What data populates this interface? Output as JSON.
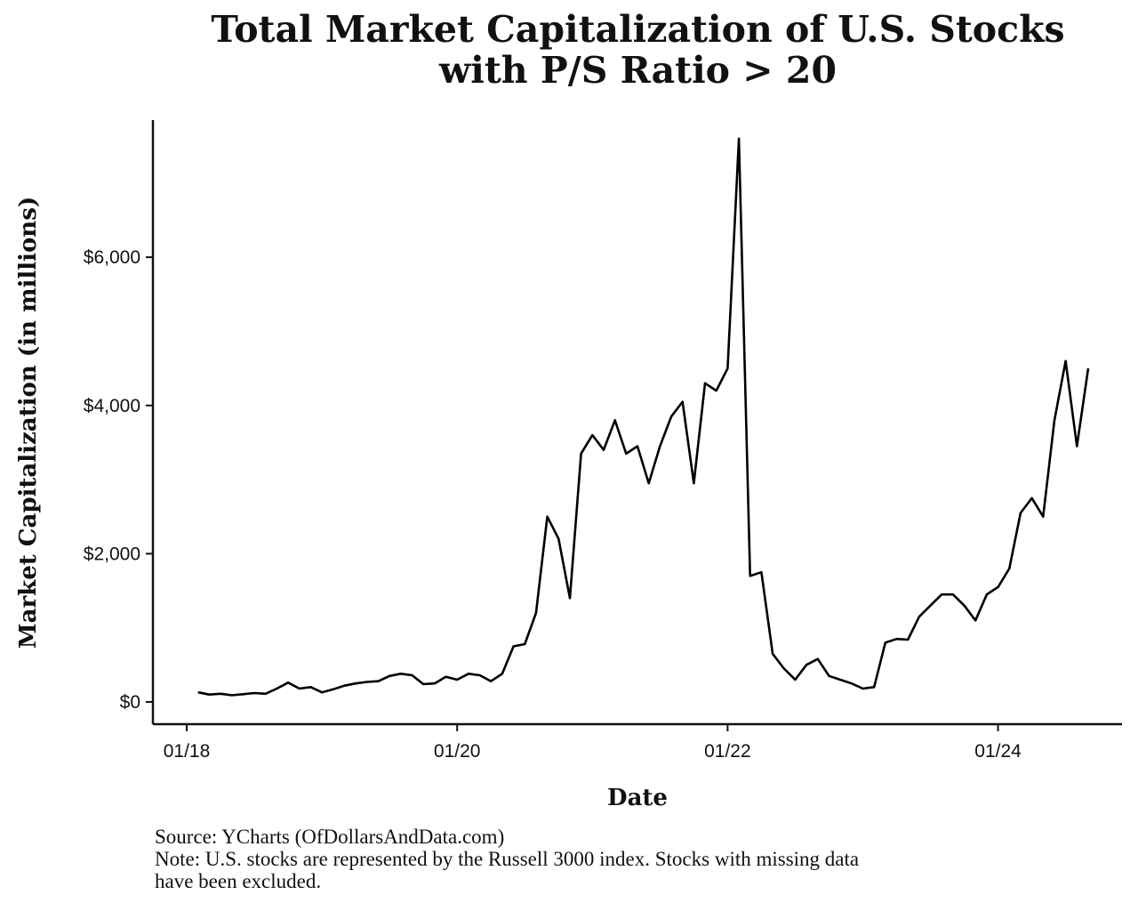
{
  "chart_data": {
    "type": "line",
    "title_line1": "Total Market Capitalization of U.S. Stocks",
    "title_line2": "with P/S Ratio > 20",
    "xlabel": "Date",
    "ylabel": "Market Capitalization (in millions)",
    "x_ticks": [
      "01/18",
      "01/20",
      "01/22",
      "01/24"
    ],
    "y_ticks": [
      "$0",
      "$2,000",
      "$4,000",
      "$6,000"
    ],
    "y_tick_values": [
      0,
      2000,
      4000,
      6000
    ],
    "x_tick_values": [
      0,
      24,
      48,
      72
    ],
    "xlim": [
      -3,
      83
    ],
    "ylim": [
      -300,
      7850
    ],
    "grid": false,
    "series": [
      {
        "name": "Market Cap",
        "x": [
          1,
          2,
          3,
          4,
          5,
          6,
          7,
          8,
          9,
          10,
          11,
          12,
          13,
          14,
          15,
          16,
          17,
          18,
          19,
          20,
          21,
          22,
          23,
          24,
          25,
          26,
          27,
          28,
          29,
          30,
          31,
          32,
          33,
          34,
          35,
          36,
          37,
          38,
          39,
          40,
          41,
          42,
          43,
          44,
          45,
          46,
          47,
          48,
          49,
          50,
          51,
          52,
          53,
          54,
          55,
          56,
          57,
          58,
          59,
          60,
          61,
          62,
          63,
          64,
          65,
          66,
          67,
          68,
          69,
          70,
          71,
          72,
          73,
          74,
          75,
          76,
          77,
          78,
          79,
          80
        ],
        "values": [
          130,
          100,
          110,
          90,
          105,
          120,
          110,
          180,
          260,
          180,
          200,
          130,
          170,
          220,
          250,
          270,
          280,
          350,
          380,
          360,
          240,
          250,
          340,
          300,
          380,
          360,
          280,
          380,
          750,
          780,
          1200,
          2500,
          2200,
          1400,
          3350,
          3600,
          3400,
          3800,
          3350,
          3450,
          2950,
          3450,
          3850,
          4050,
          2950,
          4300,
          4200,
          4500,
          7600,
          1700,
          1750,
          650,
          450,
          300,
          500,
          580,
          350,
          300,
          250,
          180,
          200,
          800,
          850,
          840,
          1150,
          1300,
          1450,
          1450,
          1300,
          1100,
          1450,
          1550,
          1800,
          2550,
          2750,
          2500,
          3800,
          4600,
          3450,
          4500
        ]
      }
    ]
  },
  "footer": {
    "source": "Source: YCharts (OfDollarsAndData.com)",
    "note_line1": "Note: U.S. stocks are represented by the Russell 3000 index. Stocks with missing data",
    "note_line2": "have been excluded."
  }
}
